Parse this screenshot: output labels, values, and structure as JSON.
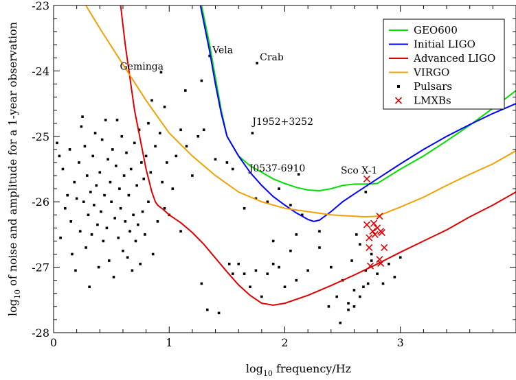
{
  "chart_data": {
    "type": "line",
    "title": "",
    "xlabel": {
      "prefix": "log",
      "sub": "10",
      "rest": " frequency/Hz"
    },
    "ylabel": {
      "prefix": "log",
      "sub": "10",
      "rest": " of noise and amplitude for a 1-year observation"
    },
    "xlim": [
      0,
      4
    ],
    "ylim": [
      -28,
      -23
    ],
    "xticks": [
      0,
      1,
      2,
      3
    ],
    "xtick_labels": [
      "0",
      "1",
      "2",
      "3"
    ],
    "yticks": [
      -28,
      -27,
      -26,
      -25,
      -24,
      -23
    ],
    "ytick_labels": [
      "-28",
      "-27",
      "-26",
      "-25",
      "-24",
      "-23"
    ],
    "grid": false,
    "legend_position": "top-right",
    "series": [
      {
        "name": "GEO600",
        "color": "#00dd00",
        "x": [
          1.28,
          1.35,
          1.4,
          1.45,
          1.5,
          1.6,
          1.7,
          1.8,
          1.9,
          2.0,
          2.1,
          2.2,
          2.3,
          2.4,
          2.5,
          2.6,
          2.7,
          2.8,
          3.0,
          3.2,
          3.4,
          3.6,
          3.8,
          4.0
        ],
        "values": [
          -23.0,
          -23.6,
          -24.1,
          -24.6,
          -25.0,
          -25.3,
          -25.45,
          -25.55,
          -25.65,
          -25.72,
          -25.78,
          -25.82,
          -25.83,
          -25.8,
          -25.75,
          -25.73,
          -25.73,
          -25.72,
          -25.5,
          -25.3,
          -25.07,
          -24.83,
          -24.57,
          -24.3
        ]
      },
      {
        "name": "Initial LIGO",
        "color": "#0000ff",
        "x": [
          1.27,
          1.35,
          1.4,
          1.45,
          1.5,
          1.6,
          1.7,
          1.8,
          1.9,
          2.0,
          2.1,
          2.2,
          2.25,
          2.3,
          2.4,
          2.5,
          2.6,
          2.8,
          3.0,
          3.2,
          3.4,
          3.6,
          3.8,
          4.0
        ],
        "values": [
          -23.0,
          -23.7,
          -24.2,
          -24.65,
          -25.0,
          -25.3,
          -25.55,
          -25.75,
          -25.92,
          -26.05,
          -26.17,
          -26.27,
          -26.3,
          -26.28,
          -26.15,
          -26.0,
          -25.88,
          -25.65,
          -25.42,
          -25.2,
          -25.0,
          -24.82,
          -24.65,
          -24.5
        ]
      },
      {
        "name": "Advanced LIGO",
        "color": "#dd0000",
        "x": [
          0.58,
          0.62,
          0.66,
          0.7,
          0.75,
          0.8,
          0.85,
          0.88,
          0.9,
          0.95,
          1.0,
          1.1,
          1.2,
          1.3,
          1.4,
          1.5,
          1.6,
          1.7,
          1.8,
          1.9,
          2.0,
          2.2,
          2.4,
          2.6,
          2.8,
          3.0,
          3.2,
          3.4,
          3.6,
          3.8,
          4.0
        ],
        "values": [
          -23.0,
          -23.6,
          -24.1,
          -24.6,
          -25.05,
          -25.5,
          -25.85,
          -26.0,
          -26.05,
          -26.12,
          -26.2,
          -26.32,
          -26.47,
          -26.65,
          -26.86,
          -27.07,
          -27.27,
          -27.43,
          -27.55,
          -27.58,
          -27.55,
          -27.43,
          -27.28,
          -27.12,
          -26.95,
          -26.77,
          -26.6,
          -26.43,
          -26.23,
          -26.05,
          -25.85
        ]
      },
      {
        "name": "VIRGO",
        "color": "#f0a000",
        "x": [
          0.28,
          0.4,
          0.6,
          0.8,
          0.9,
          1.0,
          1.2,
          1.4,
          1.6,
          1.8,
          2.0,
          2.2,
          2.4,
          2.6,
          2.7,
          2.8,
          3.0,
          3.2,
          3.4,
          3.6,
          3.8,
          4.0
        ],
        "values": [
          -23.0,
          -23.35,
          -23.9,
          -24.45,
          -24.7,
          -24.95,
          -25.3,
          -25.6,
          -25.85,
          -26.0,
          -26.1,
          -26.15,
          -26.2,
          -26.22,
          -26.23,
          -26.22,
          -26.08,
          -25.93,
          -25.75,
          -25.58,
          -25.42,
          -25.22
        ]
      }
    ],
    "scatter_series": [
      {
        "name": "Pulsars",
        "color": "#000000",
        "marker": "square",
        "points": [
          [
            0.03,
            -25.1
          ],
          [
            0.05,
            -25.3
          ],
          [
            0.06,
            -26.55
          ],
          [
            0.08,
            -25.5
          ],
          [
            0.1,
            -26.1
          ],
          [
            0.12,
            -25.9
          ],
          [
            0.14,
            -25.2
          ],
          [
            0.15,
            -26.3
          ],
          [
            0.16,
            -26.8
          ],
          [
            0.18,
            -25.7
          ],
          [
            0.19,
            -27.05
          ],
          [
            0.2,
            -25.95
          ],
          [
            0.22,
            -25.4
          ],
          [
            0.23,
            -26.45
          ],
          [
            0.24,
            -24.85
          ],
          [
            0.25,
            -24.7
          ],
          [
            0.26,
            -26.0
          ],
          [
            0.27,
            -25.15
          ],
          [
            0.28,
            -26.7
          ],
          [
            0.29,
            -25.6
          ],
          [
            0.3,
            -26.2
          ],
          [
            0.31,
            -27.3
          ],
          [
            0.32,
            -25.85
          ],
          [
            0.33,
            -26.5
          ],
          [
            0.34,
            -25.3
          ],
          [
            0.35,
            -26.05
          ],
          [
            0.36,
            -24.95
          ],
          [
            0.37,
            -25.75
          ],
          [
            0.38,
            -26.35
          ],
          [
            0.39,
            -27.0
          ],
          [
            0.4,
            -25.55
          ],
          [
            0.41,
            -26.15
          ],
          [
            0.42,
            -25.05
          ],
          [
            0.43,
            -26.6
          ],
          [
            0.44,
            -25.9
          ],
          [
            0.45,
            -24.75
          ],
          [
            0.46,
            -26.4
          ],
          [
            0.47,
            -25.35
          ],
          [
            0.48,
            -26.9
          ],
          [
            0.49,
            -25.7
          ],
          [
            0.5,
            -26.0
          ],
          [
            0.51,
            -25.2
          ],
          [
            0.52,
            -27.15
          ],
          [
            0.53,
            -26.25
          ],
          [
            0.54,
            -25.45
          ],
          [
            0.55,
            -24.75
          ],
          [
            0.56,
            -26.55
          ],
          [
            0.57,
            -25.8
          ],
          [
            0.58,
            -26.1
          ],
          [
            0.59,
            -25.0
          ],
          [
            0.6,
            -26.75
          ],
          [
            0.61,
            -25.6
          ],
          [
            0.62,
            -26.3
          ],
          [
            0.63,
            -25.25
          ],
          [
            0.64,
            -26.85
          ],
          [
            0.65,
            -25.9
          ],
          [
            0.66,
            -26.45
          ],
          [
            0.67,
            -25.5
          ],
          [
            0.68,
            -27.05
          ],
          [
            0.69,
            -26.2
          ],
          [
            0.7,
            -25.1
          ],
          [
            0.71,
            -26.6
          ],
          [
            0.72,
            -25.75
          ],
          [
            0.73,
            -26.35
          ],
          [
            0.74,
            -24.9
          ],
          [
            0.75,
            -26.95
          ],
          [
            0.76,
            -25.4
          ],
          [
            0.77,
            -26.15
          ],
          [
            0.78,
            -25.65
          ],
          [
            0.79,
            -26.5
          ],
          [
            0.8,
            -25.3
          ],
          [
            0.82,
            -26.0
          ],
          [
            0.84,
            -25.55
          ],
          [
            0.86,
            -26.8
          ],
          [
            0.88,
            -25.15
          ],
          [
            0.9,
            -26.3
          ],
          [
            0.92,
            -24.95
          ],
          [
            0.94,
            -25.7
          ],
          [
            0.96,
            -26.1
          ],
          [
            0.98,
            -25.4
          ],
          [
            1.0,
            -26.2
          ],
          [
            1.03,
            -25.8
          ],
          [
            1.06,
            -25.3
          ],
          [
            1.1,
            -26.45
          ],
          [
            1.15,
            -25.15
          ],
          [
            1.2,
            -25.6
          ],
          [
            1.25,
            -25.0
          ],
          [
            0.93,
            -24.02
          ],
          [
            0.96,
            -24.55
          ],
          [
            0.85,
            -24.45
          ],
          [
            0.82,
            -24.8
          ],
          [
            1.1,
            -24.9
          ],
          [
            1.14,
            -24.3
          ],
          [
            1.28,
            -24.15
          ],
          [
            1.3,
            -24.9
          ],
          [
            1.4,
            -25.35
          ],
          [
            1.33,
            -27.65
          ],
          [
            1.43,
            -27.7
          ],
          [
            1.28,
            -27.25
          ],
          [
            1.52,
            -26.95
          ],
          [
            1.55,
            -27.1
          ],
          [
            1.6,
            -26.95
          ],
          [
            1.65,
            -27.1
          ],
          [
            1.7,
            -27.3
          ],
          [
            1.75,
            -27.05
          ],
          [
            1.8,
            -27.45
          ],
          [
            1.85,
            -27.1
          ],
          [
            1.9,
            -26.95
          ],
          [
            1.95,
            -27.0
          ],
          [
            2.0,
            -27.3
          ],
          [
            2.05,
            -26.75
          ],
          [
            2.1,
            -27.2
          ],
          [
            2.2,
            -27.05
          ],
          [
            2.3,
            -26.7
          ],
          [
            2.4,
            -27.0
          ],
          [
            2.45,
            -27.45
          ],
          [
            2.5,
            -27.2
          ],
          [
            2.55,
            -27.55
          ],
          [
            2.6,
            -27.35
          ],
          [
            2.65,
            -27.45
          ],
          [
            2.7,
            -27.05
          ],
          [
            2.72,
            -27.25
          ],
          [
            2.75,
            -26.9
          ],
          [
            2.8,
            -27.1
          ],
          [
            2.85,
            -27.25
          ],
          [
            2.9,
            -26.95
          ],
          [
            2.95,
            -27.15
          ],
          [
            3.0,
            -26.85
          ],
          [
            2.62,
            -26.5
          ],
          [
            2.65,
            -26.65
          ],
          [
            2.75,
            -26.8
          ],
          [
            2.58,
            -26.9
          ],
          [
            2.68,
            -27.3
          ],
          [
            2.38,
            -27.6
          ],
          [
            2.48,
            -27.85
          ],
          [
            2.55,
            -27.65
          ],
          [
            2.6,
            -27.6
          ],
          [
            1.65,
            -26.1
          ],
          [
            1.75,
            -25.95
          ],
          [
            1.85,
            -26.0
          ],
          [
            1.95,
            -25.8
          ],
          [
            2.05,
            -26.05
          ],
          [
            2.15,
            -26.2
          ],
          [
            2.3,
            -26.45
          ],
          [
            1.9,
            -26.6
          ],
          [
            2.1,
            -26.5
          ],
          [
            1.5,
            -25.4
          ],
          [
            1.55,
            -25.5
          ],
          [
            1.35,
            -23.77
          ],
          [
            1.76,
            -23.88
          ],
          [
            1.72,
            -24.95
          ],
          [
            2.12,
            -25.58
          ],
          [
            2.7,
            -25.85
          ]
        ]
      }
    ],
    "lmxbs": {
      "name": "LMXBs",
      "color": "#dd0000",
      "marker": "x",
      "points": [
        [
          2.71,
          -25.65
        ],
        [
          2.71,
          -26.35
        ],
        [
          2.73,
          -26.55
        ],
        [
          2.73,
          -26.7
        ],
        [
          2.76,
          -26.45
        ],
        [
          2.77,
          -26.33
        ],
        [
          2.8,
          -26.4
        ],
        [
          2.82,
          -26.22
        ],
        [
          2.83,
          -26.45
        ],
        [
          2.84,
          -26.47
        ],
        [
          2.78,
          -26.5
        ],
        [
          2.86,
          -26.7
        ],
        [
          2.82,
          -26.88
        ],
        [
          2.83,
          -26.94
        ],
        [
          2.74,
          -26.98
        ]
      ]
    },
    "annotations": [
      {
        "text": "Geminga",
        "x": 0.93,
        "y": -24.02
      },
      {
        "text": "Vela",
        "x": 1.35,
        "y": -23.77
      },
      {
        "text": "Crab",
        "x": 1.76,
        "y": -23.88
      },
      {
        "text": "J1952+3252",
        "x": 1.72,
        "y": -24.95
      },
      {
        "text": "J0537-6910",
        "x": 2.12,
        "y": -25.58
      },
      {
        "text": "Sco X-1",
        "x": 2.71,
        "y": -25.65
      }
    ]
  }
}
